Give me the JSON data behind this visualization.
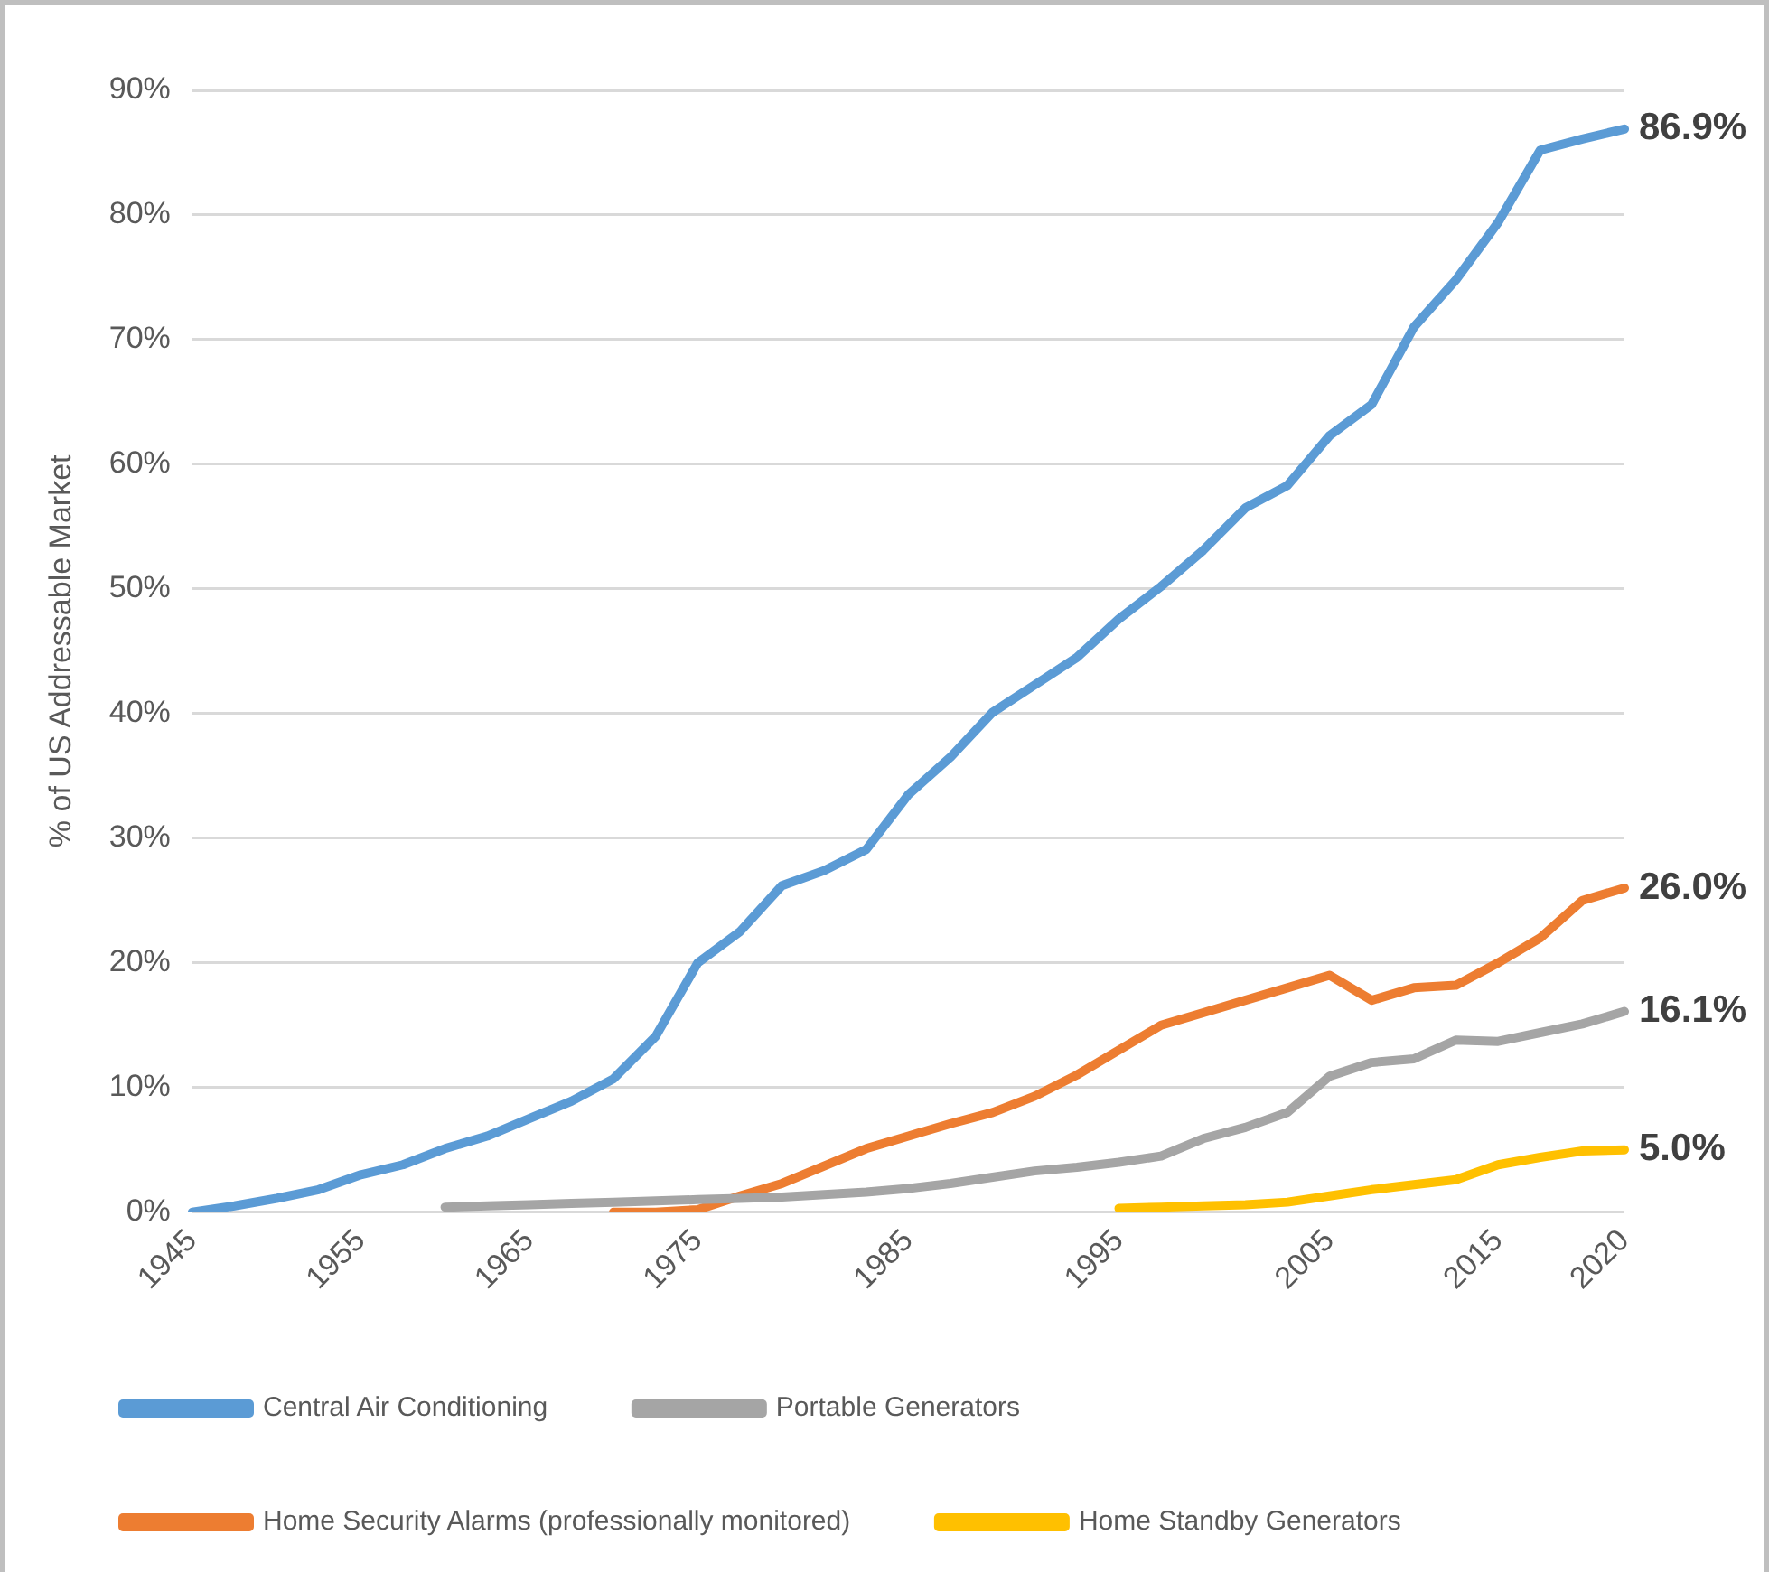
{
  "chart_data": {
    "type": "line",
    "ylabel": "% of US Addressable Market",
    "categories": [
      "1945",
      null,
      null,
      null,
      "1955",
      null,
      null,
      null,
      "1965",
      null,
      null,
      null,
      "1975",
      null,
      null,
      null,
      null,
      "1985",
      null,
      null,
      null,
      null,
      "1995",
      null,
      null,
      null,
      null,
      "2005",
      null,
      null,
      null,
      "2015",
      null,
      null,
      "2020"
    ],
    "series": [
      {
        "name": "Central Air Conditioning",
        "color": "#5b9bd5",
        "values": [
          0,
          0.5,
          1.1,
          1.8,
          3.0,
          3.8,
          5.1,
          6.1,
          7.5,
          8.9,
          10.7,
          14.1,
          20.0,
          22.5,
          26.2,
          27.4,
          29.1,
          33.5,
          36.5,
          40.1,
          42.3,
          44.5,
          47.6,
          50.2,
          53.1,
          56.5,
          58.3,
          62.3,
          64.8,
          71.0,
          74.8,
          79.4,
          85.2,
          86.1,
          86.9
        ],
        "value_labels": [
          null,
          null,
          null,
          null,
          null,
          null,
          null,
          null,
          null,
          null,
          null,
          null,
          null,
          null,
          null,
          null,
          null,
          null,
          null,
          null,
          null,
          null,
          null,
          null,
          null,
          null,
          null,
          null,
          null,
          null,
          null,
          null,
          null,
          null,
          "86.9%"
        ]
      },
      {
        "name": "Portable Generators",
        "color": "#a5a5a5",
        "values": [
          null,
          null,
          null,
          null,
          null,
          null,
          0.4,
          0.5,
          0.6,
          0.7,
          0.8,
          0.9,
          1.0,
          1.1,
          1.2,
          1.4,
          1.6,
          1.9,
          2.3,
          2.8,
          3.3,
          3.6,
          4.0,
          4.5,
          5.9,
          6.8,
          8.0,
          10.9,
          12.0,
          12.3,
          13.8,
          13.7,
          14.4,
          15.1,
          16.1
        ],
        "value_labels": [
          null,
          null,
          null,
          null,
          null,
          null,
          null,
          null,
          null,
          null,
          null,
          null,
          null,
          null,
          null,
          null,
          null,
          null,
          null,
          null,
          null,
          null,
          null,
          null,
          null,
          null,
          null,
          null,
          null,
          null,
          null,
          null,
          null,
          null,
          "16.1%"
        ]
      },
      {
        "name": "Home Security Alarms (professionally monitored)",
        "color": "#ed7d31",
        "values": [
          null,
          null,
          null,
          null,
          null,
          null,
          null,
          null,
          null,
          null,
          0,
          0,
          0.2,
          1.3,
          2.3,
          3.7,
          5.1,
          6.1,
          7.1,
          8.0,
          9.3,
          11.0,
          13.0,
          15.0,
          16.0,
          17.0,
          18.0,
          19.0,
          17.0,
          18.0,
          18.2,
          20.0,
          22.0,
          25.0,
          26.0
        ],
        "value_labels": [
          null,
          null,
          null,
          null,
          null,
          null,
          null,
          null,
          null,
          null,
          null,
          null,
          null,
          null,
          null,
          null,
          null,
          null,
          null,
          null,
          null,
          null,
          null,
          null,
          null,
          null,
          null,
          null,
          null,
          null,
          null,
          null,
          null,
          null,
          "26.0%"
        ]
      },
      {
        "name": "Home Standby Generators",
        "color": "#ffc000",
        "values": [
          null,
          null,
          null,
          null,
          null,
          null,
          null,
          null,
          null,
          null,
          null,
          null,
          null,
          null,
          null,
          null,
          null,
          null,
          null,
          null,
          null,
          null,
          0.3,
          0.4,
          0.5,
          0.6,
          0.8,
          1.3,
          1.8,
          2.2,
          2.6,
          3.8,
          4.4,
          4.9,
          5.0
        ],
        "value_labels": [
          null,
          null,
          null,
          null,
          null,
          null,
          null,
          null,
          null,
          null,
          null,
          null,
          null,
          null,
          null,
          null,
          null,
          null,
          null,
          null,
          null,
          null,
          null,
          null,
          null,
          null,
          null,
          null,
          null,
          null,
          null,
          null,
          null,
          null,
          "5.0%"
        ]
      }
    ],
    "ylim": [
      0,
      90
    ],
    "yticks": [
      {
        "value": 0,
        "label": "0%"
      },
      {
        "value": 10,
        "label": "10%"
      },
      {
        "value": 20,
        "label": "20%"
      },
      {
        "value": 30,
        "label": "30%"
      },
      {
        "value": 40,
        "label": "40%"
      },
      {
        "value": 50,
        "label": "50%"
      },
      {
        "value": 60,
        "label": "60%"
      },
      {
        "value": 70,
        "label": "70%"
      },
      {
        "value": 80,
        "label": "80%"
      },
      {
        "value": 90,
        "label": "90%"
      }
    ],
    "grid": "y",
    "legend": "bottom",
    "marker": "none",
    "line_style": "solid"
  }
}
